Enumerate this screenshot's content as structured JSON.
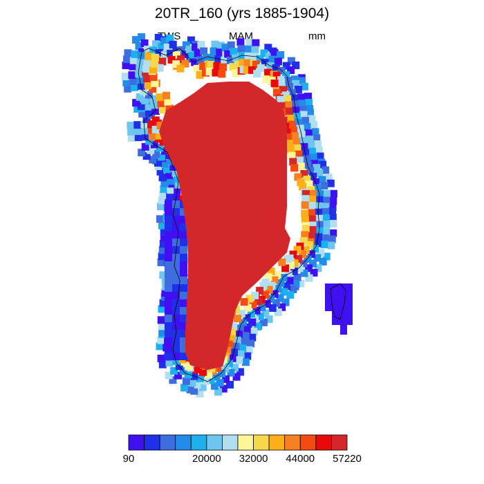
{
  "header": {
    "title": "20TR_160 (yrs 1885-1904)",
    "left_label": "TWS",
    "center_label": "MAM",
    "right_label": "mm"
  },
  "colorbar": {
    "colors": [
      "#3e10f2",
      "#2030e8",
      "#3e6de0",
      "#238ce8",
      "#1cb0f0",
      "#6ec6f0",
      "#b2def2",
      "#fff69a",
      "#f6d84a",
      "#fbb01a",
      "#f88020",
      "#f54a12",
      "#e80a0a",
      "#d2282a"
    ],
    "tick_labels": [
      "90",
      "20000",
      "32000",
      "44000",
      "57220"
    ]
  },
  "map_data": {
    "variable": "TWS",
    "season": "MAM",
    "units": "mm",
    "region": "Greenland",
    "interior_color": "#d2282a",
    "coast_color": "#000000"
  }
}
